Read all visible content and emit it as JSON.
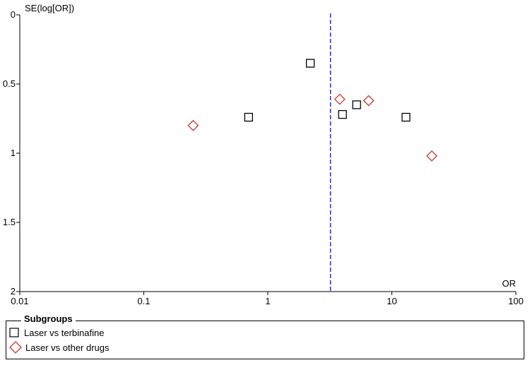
{
  "chart_data": {
    "type": "scatter",
    "title": "",
    "xlabel": "OR",
    "ylabel": "SE(log[OR])",
    "x_scale": "log",
    "xlim": [
      0.01,
      100
    ],
    "ylim": [
      0,
      2
    ],
    "y_inverted": true,
    "x_ticks": [
      "0.01",
      "0.1",
      "1",
      "10",
      "100"
    ],
    "y_ticks": [
      "0",
      "0.5",
      "1",
      "1.5",
      "2"
    ],
    "reference_line": {
      "x": 3.2,
      "style": "dashed",
      "color": "#2a2ad8"
    },
    "grid": false,
    "legend": {
      "title": "Subgroups",
      "position": "bottom"
    },
    "series": [
      {
        "name": "Laser vs terbinafine",
        "marker": "square",
        "color": "#000000",
        "points": [
          {
            "x": 2.2,
            "y": 0.35
          },
          {
            "x": 0.7,
            "y": 0.74
          },
          {
            "x": 4.0,
            "y": 0.72
          },
          {
            "x": 5.2,
            "y": 0.65
          },
          {
            "x": 13.0,
            "y": 0.74
          }
        ]
      },
      {
        "name": "Laser vs other drugs",
        "marker": "diamond",
        "color": "#d0413a",
        "points": [
          {
            "x": 0.25,
            "y": 0.8
          },
          {
            "x": 3.8,
            "y": 0.61
          },
          {
            "x": 6.5,
            "y": 0.62
          },
          {
            "x": 21.0,
            "y": 1.02
          }
        ]
      }
    ]
  }
}
